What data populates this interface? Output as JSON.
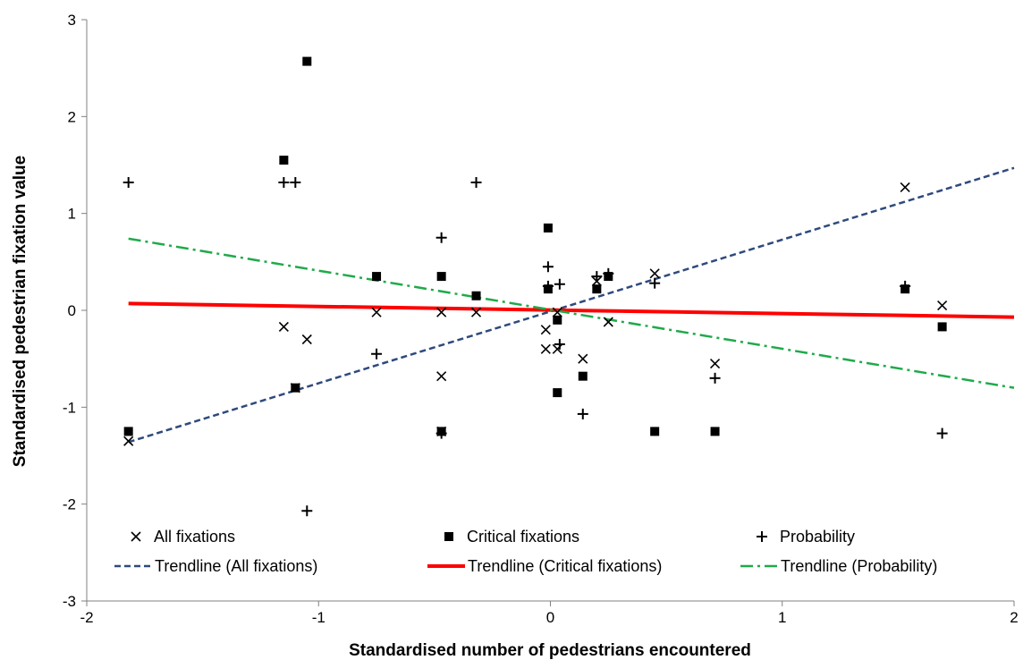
{
  "chart_data": {
    "type": "scatter",
    "xlabel": "Standardised number of pedestrians encountered",
    "ylabel": "Standardised pedestrian fixation value",
    "xlim": [
      -2,
      2
    ],
    "ylim": [
      -3,
      3
    ],
    "xticks": [
      "-2",
      "-1",
      "0",
      "1",
      "2"
    ],
    "yticks": [
      "-3",
      "-2",
      "-1",
      "0",
      "1",
      "2",
      "3"
    ],
    "grid": false,
    "legend_position": "bottom-inside",
    "series": [
      {
        "name": "All fixations",
        "marker": "x",
        "color": "#000000",
        "points": [
          [
            -1.82,
            -1.35
          ],
          [
            -1.15,
            -0.17
          ],
          [
            -1.1,
            -0.8
          ],
          [
            -1.05,
            -0.3
          ],
          [
            -0.75,
            -0.02
          ],
          [
            -0.47,
            -0.02
          ],
          [
            -0.47,
            -0.68
          ],
          [
            -0.47,
            -1.25
          ],
          [
            -0.32,
            -0.02
          ],
          [
            -0.02,
            -0.2
          ],
          [
            -0.02,
            -0.4
          ],
          [
            0.03,
            -0.4
          ],
          [
            0.03,
            -0.02
          ],
          [
            0.14,
            -0.5
          ],
          [
            0.2,
            0.3
          ],
          [
            0.25,
            -0.12
          ],
          [
            0.45,
            0.38
          ],
          [
            0.71,
            -0.55
          ],
          [
            1.53,
            1.27
          ],
          [
            1.69,
            0.05
          ]
        ]
      },
      {
        "name": "Critical fixations",
        "marker": "square",
        "color": "#000000",
        "points": [
          [
            -1.82,
            -1.25
          ],
          [
            -1.15,
            1.55
          ],
          [
            -1.05,
            2.57
          ],
          [
            -1.1,
            -0.8
          ],
          [
            -0.75,
            0.35
          ],
          [
            -0.47,
            0.35
          ],
          [
            -0.47,
            -1.25
          ],
          [
            -0.32,
            0.15
          ],
          [
            -0.01,
            0.85
          ],
          [
            -0.01,
            0.22
          ],
          [
            0.03,
            -0.1
          ],
          [
            0.03,
            -0.85
          ],
          [
            0.14,
            -0.68
          ],
          [
            0.2,
            0.22
          ],
          [
            0.25,
            0.35
          ],
          [
            0.45,
            -1.25
          ],
          [
            0.71,
            -1.25
          ],
          [
            1.53,
            0.22
          ],
          [
            1.69,
            -0.17
          ]
        ]
      },
      {
        "name": "Probability",
        "marker": "plus",
        "color": "#000000",
        "points": [
          [
            -1.82,
            1.32
          ],
          [
            -1.15,
            1.32
          ],
          [
            -1.1,
            1.32
          ],
          [
            -1.05,
            -2.07
          ],
          [
            -0.75,
            -0.45
          ],
          [
            -0.47,
            0.75
          ],
          [
            -0.47,
            -1.27
          ],
          [
            -0.32,
            1.32
          ],
          [
            -0.01,
            0.45
          ],
          [
            -0.01,
            0.25
          ],
          [
            0.04,
            0.27
          ],
          [
            0.04,
            -0.35
          ],
          [
            0.14,
            -1.07
          ],
          [
            0.2,
            0.35
          ],
          [
            0.25,
            0.38
          ],
          [
            0.45,
            0.28
          ],
          [
            0.71,
            -0.7
          ],
          [
            1.53,
            0.25
          ],
          [
            1.69,
            -1.27
          ]
        ]
      }
    ],
    "trendlines": [
      {
        "name": "Trendline (All fixations)",
        "color": "#2E4A7D",
        "style": "dashed",
        "x": [
          -1.82,
          2.0
        ],
        "y": [
          -1.36,
          1.47
        ]
      },
      {
        "name": "Trendline (Critical fixations)",
        "color": "#FF0000",
        "style": "solid",
        "x": [
          -1.82,
          2.0
        ],
        "y": [
          0.07,
          -0.07
        ]
      },
      {
        "name": "Trendline (Probability)",
        "color": "#1FAA4A",
        "style": "dashdot",
        "x": [
          -1.82,
          2.0
        ],
        "y": [
          0.74,
          -0.8
        ]
      }
    ]
  }
}
